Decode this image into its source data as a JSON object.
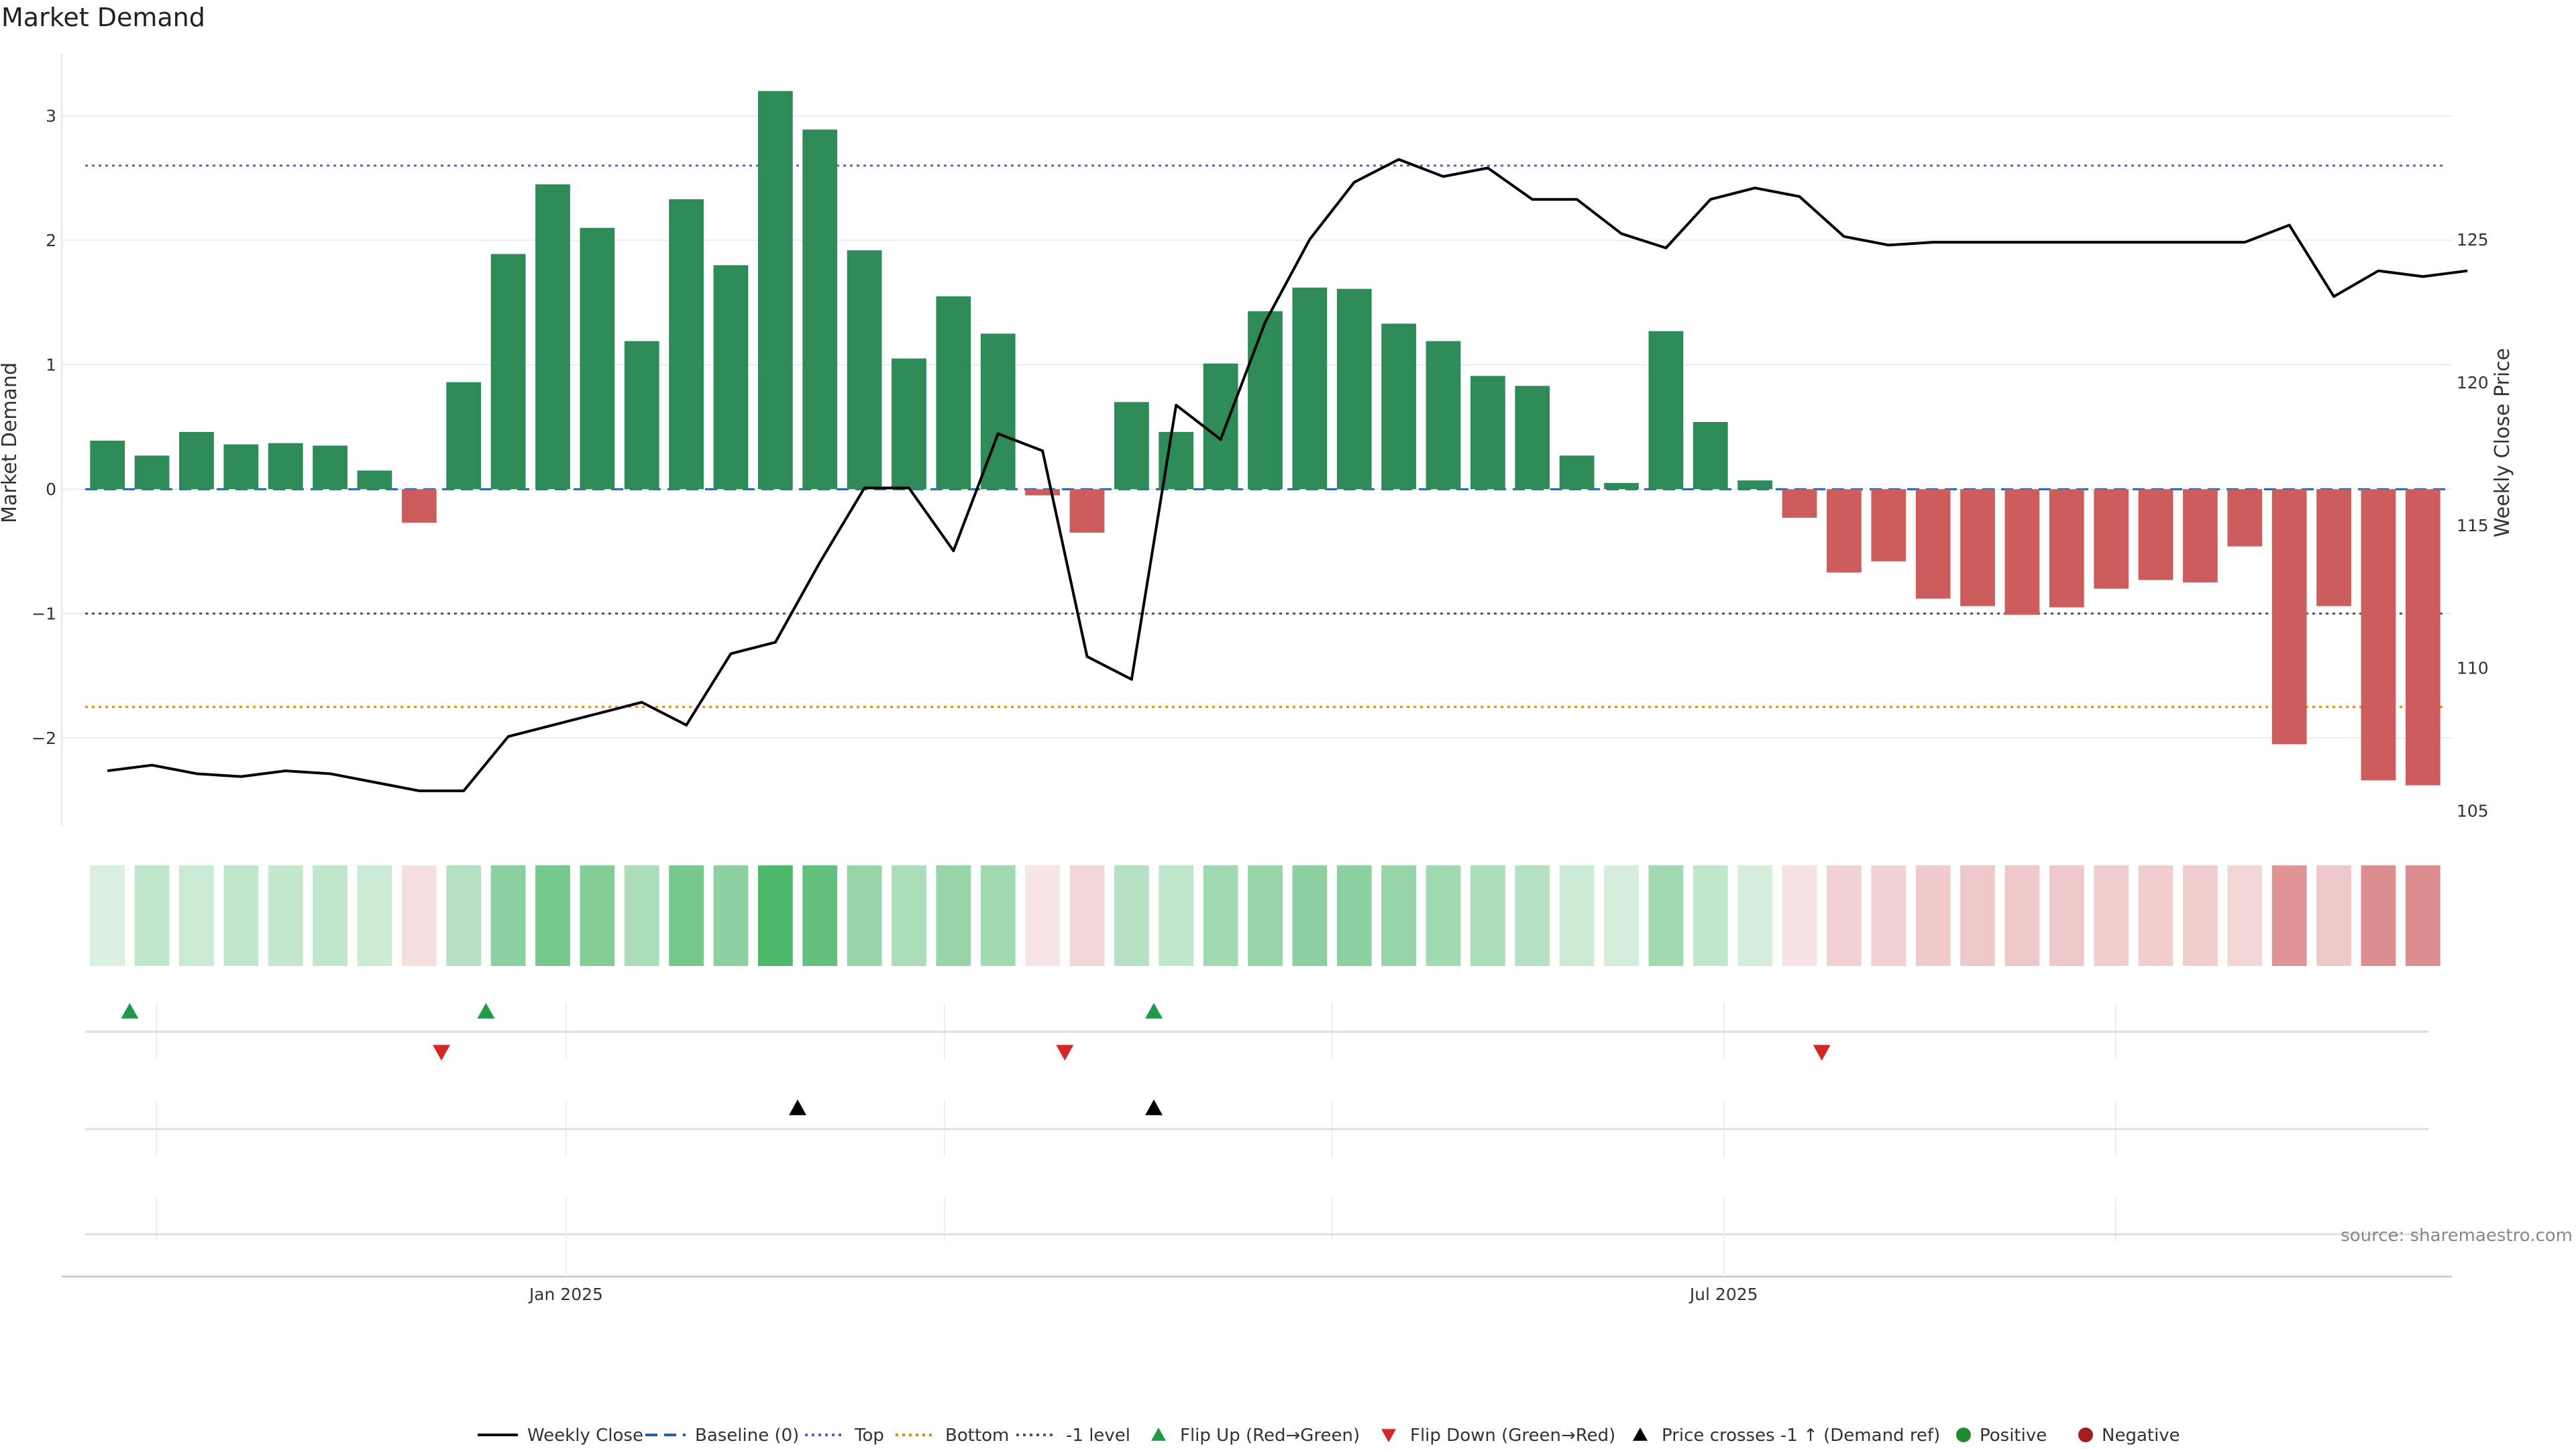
{
  "title": "Market Demand",
  "source": "source: sharemaestro.com",
  "colors": {
    "positive": "#2e8b57",
    "negative": "#cd5c5c",
    "price_line": "#000000",
    "baseline": "#1f5fb4",
    "top": "#5b5bd6",
    "bottom": "#e08a00",
    "neg1": "#555555",
    "flip_up": "#1f9a46",
    "flip_down": "#d62728",
    "cross": "#000000",
    "legend_positive": "#1f8a2e",
    "legend_negative": "#a31f1f"
  },
  "chart_data": {
    "type": "bar",
    "title": "Market Demand",
    "ylabel": "Market Demand",
    "y2label": "Weekly Close Price",
    "ylim": [
      -2.7,
      3.5
    ],
    "y2lim": [
      104.5,
      131.5
    ],
    "yticks": [
      -2,
      -1,
      0,
      1,
      2,
      3
    ],
    "y2ticks": [
      105,
      110,
      115,
      120,
      125
    ],
    "xticks": [
      {
        "label": "Jan 2025",
        "week": 10.8
      },
      {
        "label": "Jul 2025",
        "week": 36.8
      }
    ],
    "reference_lines": {
      "baseline": 0,
      "top": 2.6,
      "bottom": -1.75,
      "neg1": -1
    },
    "series": [
      {
        "name": "Market Demand",
        "values": [
          0.39,
          0.27,
          0.46,
          0.36,
          0.37,
          0.35,
          0.15,
          -0.27,
          0.86,
          1.89,
          2.45,
          2.1,
          1.19,
          2.33,
          1.8,
          3.2,
          2.89,
          1.92,
          1.05,
          1.55,
          1.25,
          -0.05,
          -0.35,
          0.7,
          0.46,
          1.01,
          1.43,
          1.62,
          1.61,
          1.33,
          1.19,
          0.91,
          0.83,
          0.27,
          0.05,
          1.27,
          0.54,
          0.07,
          -0.23,
          -0.67,
          -0.58,
          -0.88,
          -0.94,
          -1.01,
          -0.95,
          -0.8,
          -0.73,
          -0.75,
          -0.46,
          -2.05,
          -0.94,
          -2.34,
          -2.38
        ]
      },
      {
        "name": "Weekly Close",
        "x_offset": 0.5,
        "values": [
          106.4,
          106.6,
          106.3,
          106.2,
          106.4,
          106.3,
          106.0,
          105.7,
          105.7,
          107.6,
          108.0,
          108.4,
          108.8,
          108.0,
          110.5,
          110.9,
          113.7,
          116.3,
          116.3,
          114.1,
          118.2,
          117.6,
          110.4,
          109.6,
          119.2,
          118.0,
          122.1,
          125.0,
          127.0,
          127.8,
          127.2,
          127.5,
          126.4,
          126.4,
          125.2,
          124.7,
          126.4,
          126.8,
          126.5,
          125.1,
          124.8,
          124.9,
          124.9,
          124.9,
          124.9,
          124.9,
          124.9,
          124.9,
          124.9,
          125.5,
          123.0,
          123.9,
          123.7,
          123.9
        ]
      }
    ],
    "heatmap_intensity": [
      0.18,
      0.3,
      0.25,
      0.3,
      0.28,
      0.3,
      0.25,
      0.2,
      0.35,
      0.55,
      0.65,
      0.6,
      0.4,
      0.65,
      0.55,
      0.85,
      0.75,
      0.5,
      0.4,
      0.5,
      0.45,
      0.16,
      0.25,
      0.35,
      0.3,
      0.45,
      0.5,
      0.55,
      0.55,
      0.5,
      0.45,
      0.4,
      0.35,
      0.25,
      0.2,
      0.45,
      0.3,
      0.2,
      0.18,
      0.28,
      0.28,
      0.32,
      0.33,
      0.33,
      0.33,
      0.3,
      0.3,
      0.3,
      0.25,
      0.65,
      0.33,
      0.7,
      0.7
    ],
    "flip_up": [
      1,
      9,
      24
    ],
    "flip_down": [
      8,
      22,
      39
    ],
    "price_crosses": [
      16,
      24
    ],
    "markers_vgrid_weeks": [
      1.6,
      10.8,
      19.3,
      28.0,
      36.8,
      45.6
    ],
    "legend": [
      "Weekly Close",
      "Baseline (0)",
      "Top",
      "Bottom",
      "-1 level",
      "Flip Up (Red→Green)",
      "Flip Down (Green→Red)",
      "Price crosses -1 ↑ (Demand ref)",
      "Positive",
      "Negative"
    ]
  }
}
